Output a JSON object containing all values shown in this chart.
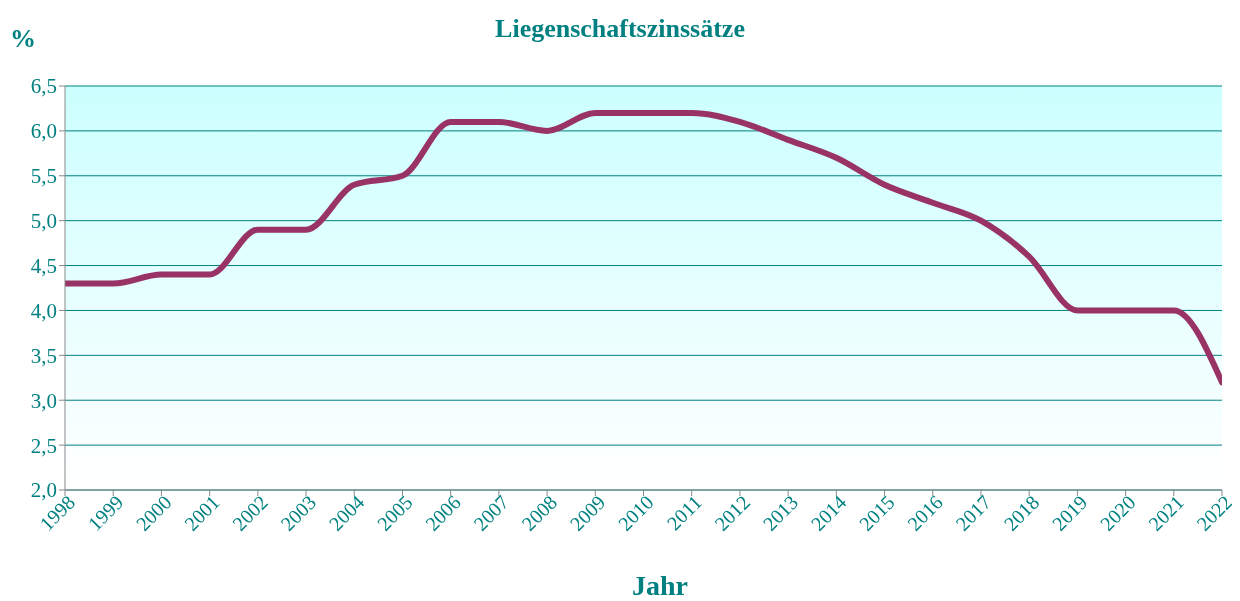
{
  "chart_data": {
    "type": "line",
    "title": "Liegenschaftszinssätze",
    "ylabel": "%",
    "xlabel": "Jahr",
    "x": [
      1998,
      1999,
      2000,
      2001,
      2002,
      2003,
      2004,
      2005,
      2006,
      2007,
      2008,
      2009,
      2010,
      2011,
      2012,
      2013,
      2014,
      2015,
      2016,
      2017,
      2018,
      2019,
      2020,
      2021,
      2022
    ],
    "series": [
      {
        "color": "#993366",
        "values": [
          4.3,
          4.3,
          4.4,
          4.4,
          4.9,
          4.9,
          5.4,
          5.5,
          6.1,
          6.1,
          6.0,
          6.2,
          6.2,
          6.2,
          6.1,
          5.9,
          5.7,
          5.4,
          5.2,
          5.0,
          4.6,
          4.0,
          4.0,
          4.0,
          3.2
        ]
      }
    ],
    "xlim": [
      1998,
      2022
    ],
    "xticks": [
      1998,
      1999,
      2000,
      2001,
      2002,
      2003,
      2004,
      2005,
      2006,
      2007,
      2008,
      2009,
      2010,
      2011,
      2012,
      2013,
      2014,
      2015,
      2016,
      2017,
      2018,
      2019,
      2020,
      2021,
      2022
    ],
    "ylim": [
      2,
      6.5
    ],
    "yticks": [
      {
        "value": 2,
        "label": "2,0"
      },
      {
        "value": 2.5,
        "label": "2,5"
      },
      {
        "value": 3,
        "label": "3,0"
      },
      {
        "value": 3.5,
        "label": "3,5"
      },
      {
        "value": 4,
        "label": "4,0"
      },
      {
        "value": 4.5,
        "label": "4,5"
      },
      {
        "value": 5,
        "label": "5,0"
      },
      {
        "value": 5.5,
        "label": "5,5"
      },
      {
        "value": 6,
        "label": "6,0"
      },
      {
        "value": 6.5,
        "label": "6,5"
      }
    ],
    "grid": "y",
    "legend": false,
    "marker": "none",
    "line_style": "solid"
  }
}
